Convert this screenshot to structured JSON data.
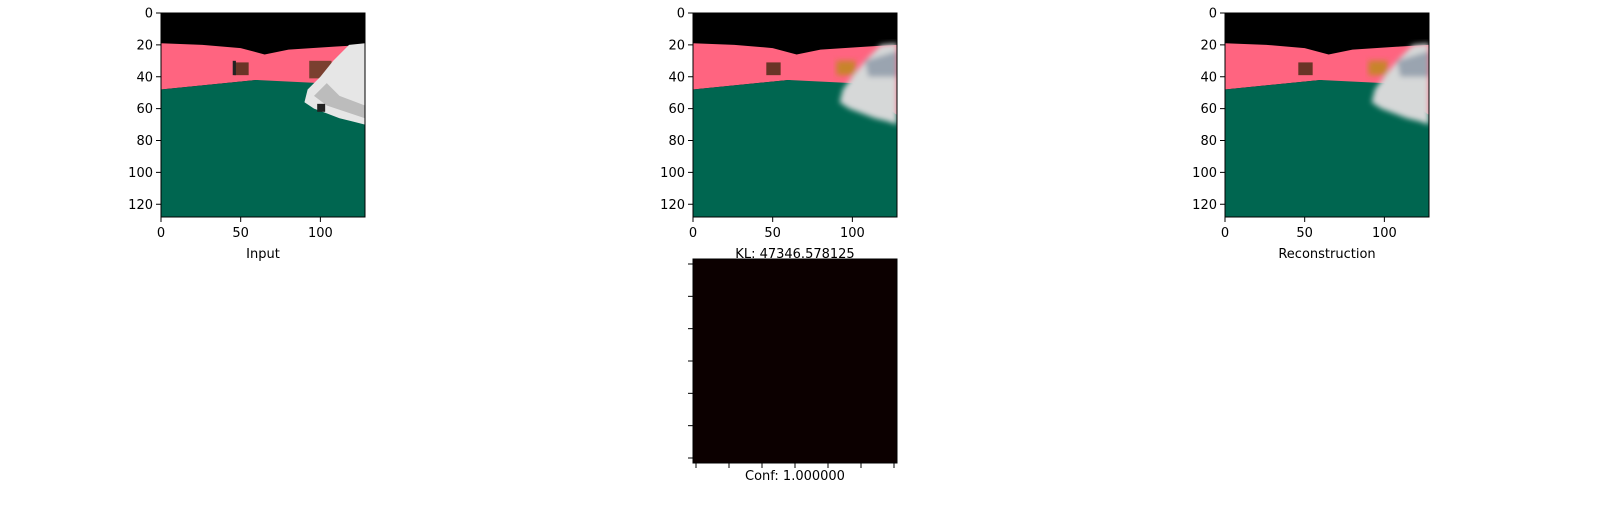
{
  "chart_data": [
    {
      "type": "image",
      "xlabel": "Input",
      "x_ticks": [
        0,
        50,
        100
      ],
      "y_ticks": [
        0,
        20,
        40,
        60,
        80,
        100,
        120
      ],
      "xlim": [
        0,
        128
      ],
      "ylim": [
        128,
        0
      ],
      "image": "road scene segmentation input with car",
      "variant": "sharp"
    },
    {
      "type": "image",
      "xlabel": "KL: 47346.578125",
      "x_ticks": [
        0,
        50,
        100
      ],
      "y_ticks": [
        0,
        20,
        40,
        60,
        80,
        100,
        120
      ],
      "xlim": [
        0,
        128
      ],
      "ylim": [
        128,
        0
      ],
      "image": "road scene reconstruction",
      "variant": "blurred"
    },
    {
      "type": "image",
      "xlabel": "Reconstruction",
      "x_ticks": [
        0,
        50,
        100
      ],
      "y_ticks": [
        0,
        20,
        40,
        60,
        80,
        100,
        120
      ],
      "xlim": [
        0,
        128
      ],
      "ylim": [
        128,
        0
      ],
      "image": "road scene reconstruction",
      "variant": "blurred"
    },
    {
      "type": "heatmap",
      "xlabel": "Conf: 1.000000",
      "fill_color": "#0c0000",
      "x_tick_count": 7,
      "y_tick_count": 7,
      "image": "confidence map (uniform)"
    }
  ],
  "colors": {
    "sky": "#000000",
    "sidewalk": "#ff6480",
    "road": "#006650",
    "car_body": "#e6e6e6",
    "car_shadow": "#bcbcbc",
    "object": "#6a3426",
    "confidence": "#0c0000"
  }
}
